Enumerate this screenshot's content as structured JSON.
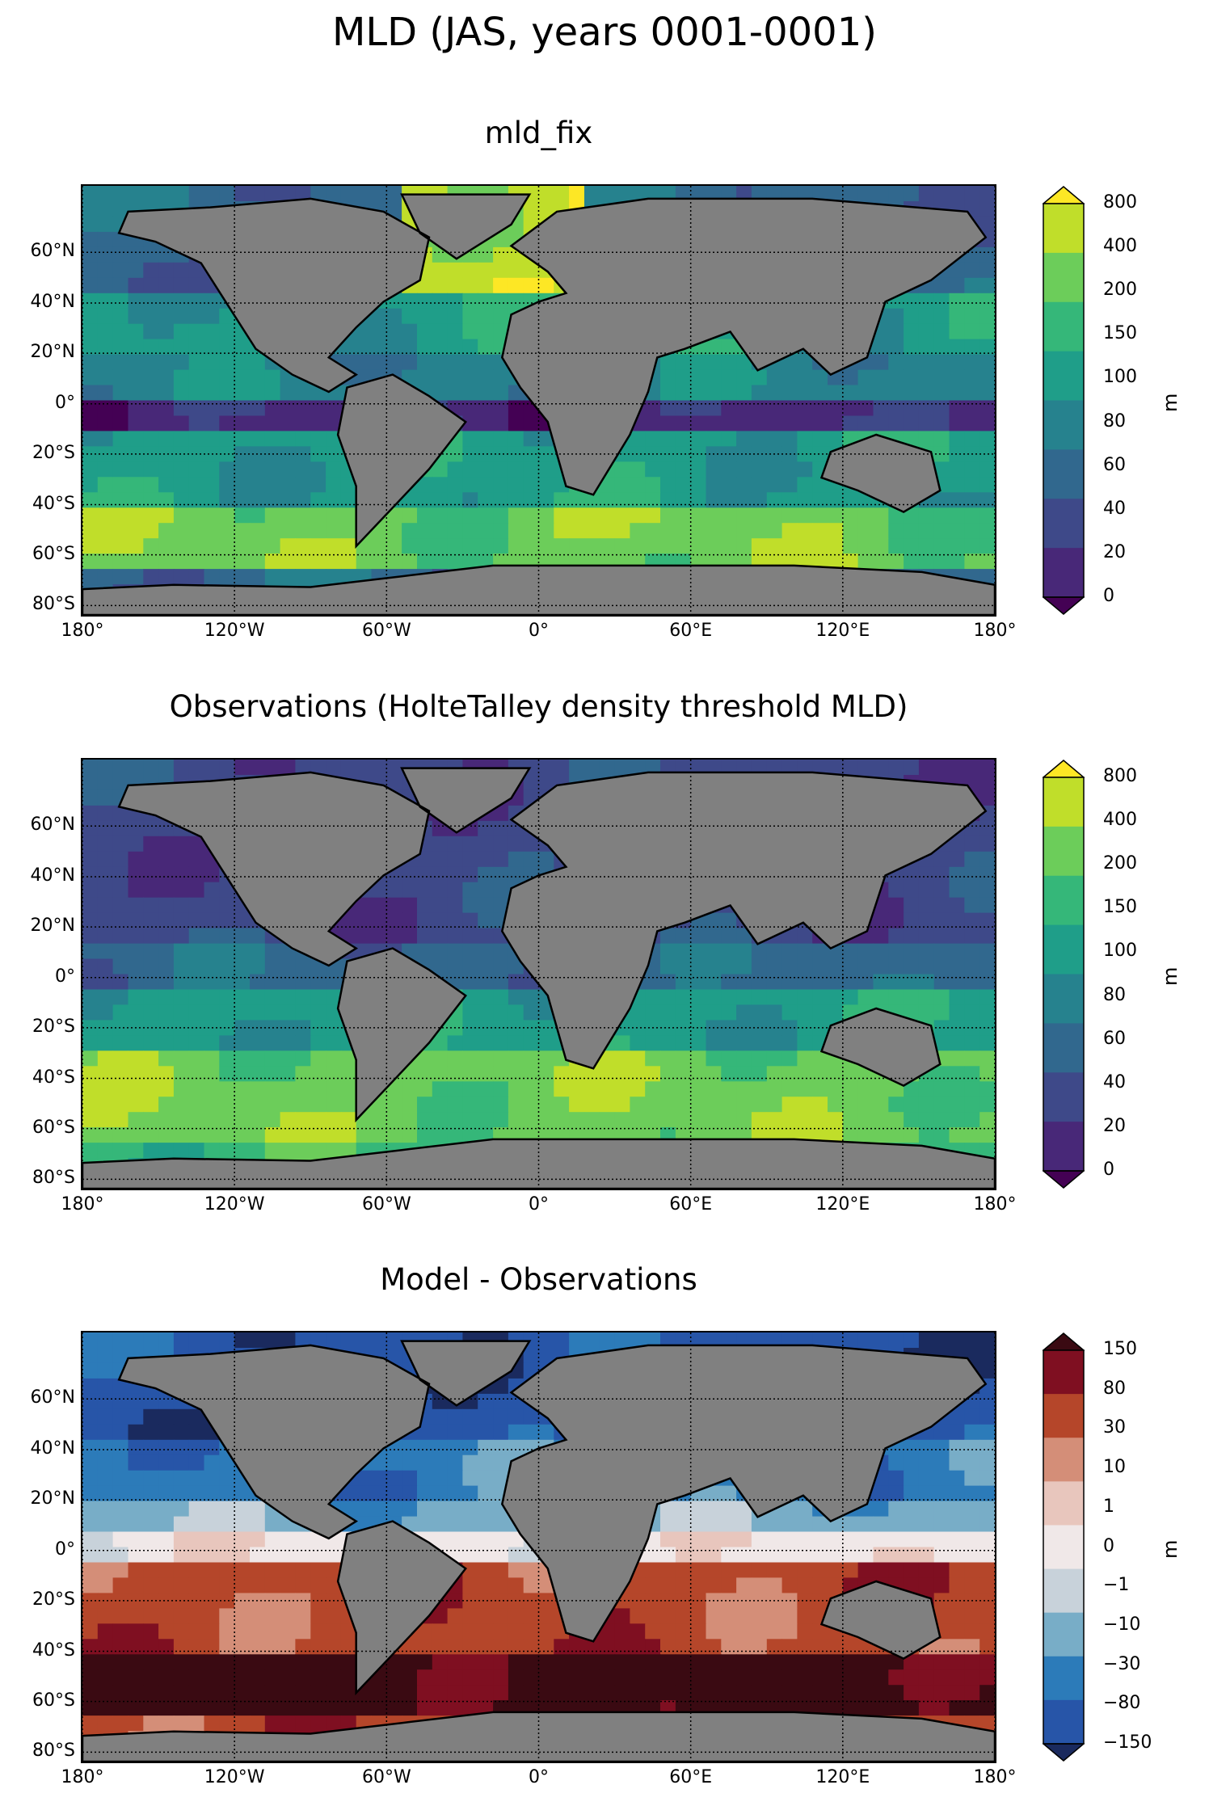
{
  "suptitle": "MLD (JAS, years 0001-0001)",
  "panels": [
    {
      "title": "mld_fix",
      "colorbar_labels": [
        "800",
        "400",
        "200",
        "150",
        "100",
        "80",
        "60",
        "40",
        "20",
        "0"
      ],
      "colors": [
        "#fde725",
        "#c0de2a",
        "#6ccd5a",
        "#35b779",
        "#1f9e89",
        "#26828e",
        "#31688e",
        "#3e4989",
        "#482878",
        "#440154"
      ],
      "unit": "m",
      "field": "model"
    },
    {
      "title": "Observations (HolteTalley density threshold MLD)",
      "colorbar_labels": [
        "800",
        "400",
        "200",
        "150",
        "100",
        "80",
        "60",
        "40",
        "20",
        "0"
      ],
      "colors": [
        "#fde725",
        "#c0de2a",
        "#6ccd5a",
        "#35b779",
        "#1f9e89",
        "#26828e",
        "#31688e",
        "#3e4989",
        "#482878",
        "#440154"
      ],
      "unit": "m",
      "field": "obs"
    },
    {
      "title": "Model - Observations",
      "colorbar_labels": [
        "150",
        "80",
        "30",
        "10",
        "1",
        "0",
        "−1",
        "−10",
        "−30",
        "−80",
        "−150"
      ],
      "colors": [
        "#3a0a12",
        "#7f0f21",
        "#b5462a",
        "#d48e78",
        "#e8c6bd",
        "#f0e8e8",
        "#c8d2da",
        "#78adc7",
        "#2c7bb9",
        "#2755a8",
        "#1a2a5e"
      ],
      "unit": "m",
      "field": "diff"
    }
  ],
  "lat_ticks": [
    "60°N",
    "40°N",
    "20°N",
    "0°",
    "20°S",
    "40°S",
    "60°S",
    "80°S"
  ],
  "lon_ticks": [
    "180°",
    "120°W",
    "60°W",
    "0°",
    "60°E",
    "120°E",
    "180°"
  ],
  "land_color": "#808080"
}
